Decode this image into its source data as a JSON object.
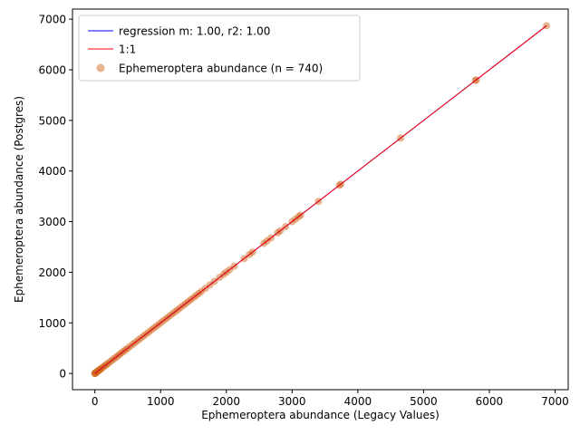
{
  "chart_data": {
    "type": "scatter",
    "title": "",
    "xlabel": "Ephemeroptera abundance (Legacy Values)",
    "ylabel": "Ephemeroptera abundance (Postgres)",
    "xlim": [
      -340,
      7200
    ],
    "ylim": [
      -320,
      7200
    ],
    "xticks": [
      0,
      1000,
      2000,
      3000,
      4000,
      5000,
      6000,
      7000
    ],
    "yticks": [
      0,
      1000,
      2000,
      3000,
      4000,
      5000,
      6000,
      7000
    ],
    "xtick_labels": [
      "0",
      "1000",
      "2000",
      "3000",
      "4000",
      "5000",
      "6000",
      "7000"
    ],
    "ytick_labels": [
      "0",
      "1000",
      "2000",
      "3000",
      "4000",
      "5000",
      "6000",
      "7000"
    ],
    "grid": false,
    "legend_position": "top-left",
    "series": [
      {
        "name": "regression m: 1.00, r2: 1.00",
        "kind": "line",
        "color": "#0000ff",
        "x": [
          0,
          6870
        ],
        "y": [
          0,
          6870
        ]
      },
      {
        "name": "1:1",
        "kind": "line",
        "color": "#ff0000",
        "x": [
          0,
          6870
        ],
        "y": [
          0,
          6870
        ]
      },
      {
        "name": "Ephemeroptera abundance (n = 740)",
        "kind": "scatter",
        "color": "#d2691e",
        "alpha": 0.5,
        "x": [
          0,
          2,
          5,
          8,
          10,
          15,
          20,
          25,
          30,
          40,
          50,
          60,
          70,
          80,
          90,
          100,
          120,
          140,
          160,
          180,
          200,
          230,
          260,
          290,
          320,
          350,
          380,
          410,
          440,
          470,
          500,
          540,
          580,
          620,
          660,
          700,
          740,
          780,
          820,
          860,
          900,
          940,
          980,
          1020,
          1060,
          1100,
          1140,
          1180,
          1220,
          1260,
          1300,
          1340,
          1380,
          1420,
          1460,
          1500,
          1540,
          1580,
          1620,
          1680,
          1750,
          1820,
          1900,
          1960,
          2000,
          2050,
          2120,
          2270,
          2350,
          2400,
          2570,
          2620,
          2680,
          2780,
          2820,
          2900,
          3000,
          3050,
          3100,
          3130,
          3400,
          3720,
          3740,
          4650,
          5790,
          5800,
          6870
        ],
        "y": [
          0,
          2,
          5,
          8,
          10,
          15,
          20,
          25,
          30,
          40,
          50,
          60,
          70,
          80,
          90,
          100,
          120,
          140,
          160,
          180,
          200,
          230,
          260,
          290,
          320,
          350,
          380,
          410,
          440,
          470,
          500,
          540,
          580,
          620,
          660,
          700,
          740,
          780,
          820,
          860,
          900,
          940,
          980,
          1020,
          1060,
          1100,
          1140,
          1180,
          1220,
          1260,
          1300,
          1340,
          1380,
          1420,
          1460,
          1500,
          1540,
          1580,
          1620,
          1680,
          1750,
          1820,
          1900,
          1960,
          2000,
          2050,
          2120,
          2270,
          2350,
          2400,
          2570,
          2620,
          2680,
          2780,
          2820,
          2900,
          3000,
          3050,
          3100,
          3130,
          3400,
          3720,
          3740,
          4650,
          5790,
          5800,
          6870
        ]
      }
    ]
  }
}
